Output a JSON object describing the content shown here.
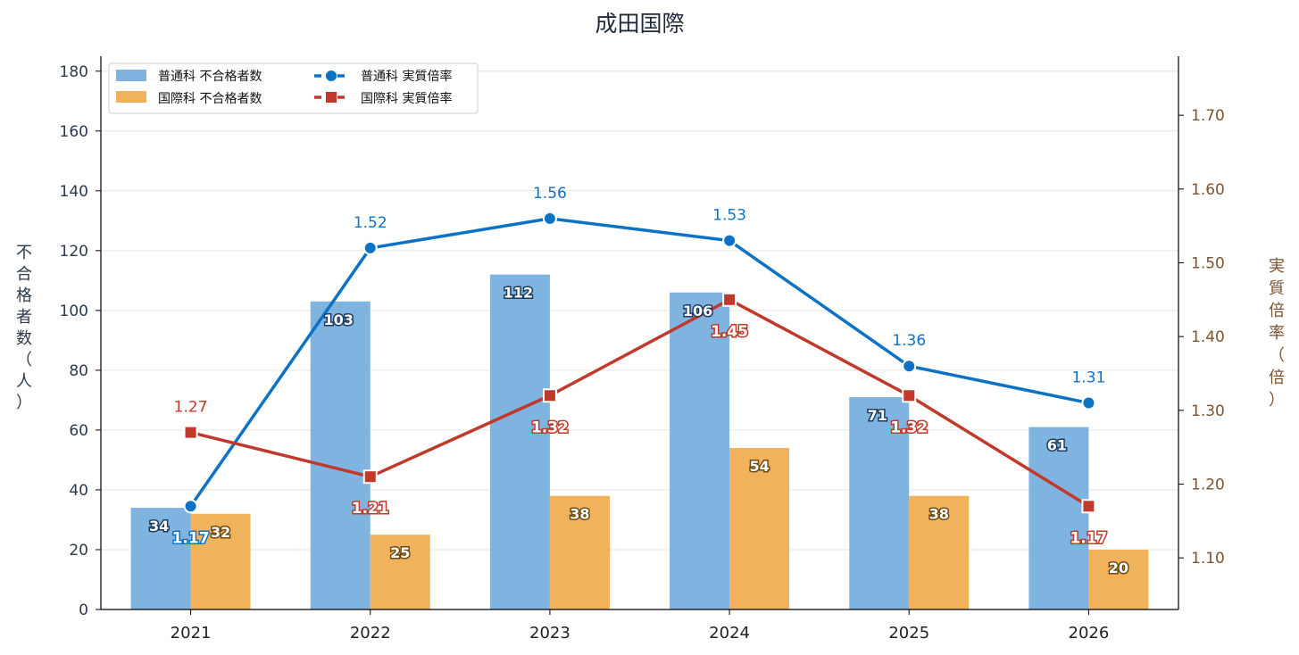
{
  "chart_data": {
    "type": "bar",
    "title": "成田国際",
    "categories": [
      "2021",
      "2022",
      "2023",
      "2024",
      "2025",
      "2026"
    ],
    "ylabel": "不合格者数（人）",
    "y2label": "実質倍率（倍）",
    "ylim": [
      0,
      185
    ],
    "yticks": [
      0,
      20,
      40,
      60,
      80,
      100,
      120,
      140,
      160,
      180
    ],
    "y2lim": [
      1.03,
      1.78
    ],
    "y2ticks": [
      1.1,
      1.2,
      1.3,
      1.4,
      1.5,
      1.6,
      1.7
    ],
    "grid": true,
    "legend_position": "top-left",
    "bar_series": [
      {
        "name": "普通科 不合格者数",
        "values": [
          34,
          103,
          112,
          106,
          71,
          61
        ],
        "color": "#7fb3e0",
        "label_color": "#1b3a5c"
      },
      {
        "name": "国際科 不合格者数",
        "values": [
          32,
          25,
          38,
          54,
          38,
          20
        ],
        "color": "#f0b25a",
        "label_color": "#6b4a12"
      }
    ],
    "line_series": [
      {
        "name": "普通科 実質倍率",
        "values": [
          1.17,
          1.52,
          1.56,
          1.53,
          1.36,
          1.31
        ],
        "labels": [
          "1.17",
          "1.52",
          "1.56",
          "1.53",
          "1.36",
          "1.31"
        ],
        "color": "#0c72c4",
        "marker": "circle"
      },
      {
        "name": "国際科 実質倍率",
        "values": [
          1.27,
          1.21,
          1.32,
          1.45,
          1.32,
          1.17
        ],
        "labels": [
          "1.27",
          "1.21",
          "1.32",
          "1.45",
          "1.32",
          "1.17"
        ],
        "color": "#c0392b",
        "marker": "square"
      }
    ]
  }
}
